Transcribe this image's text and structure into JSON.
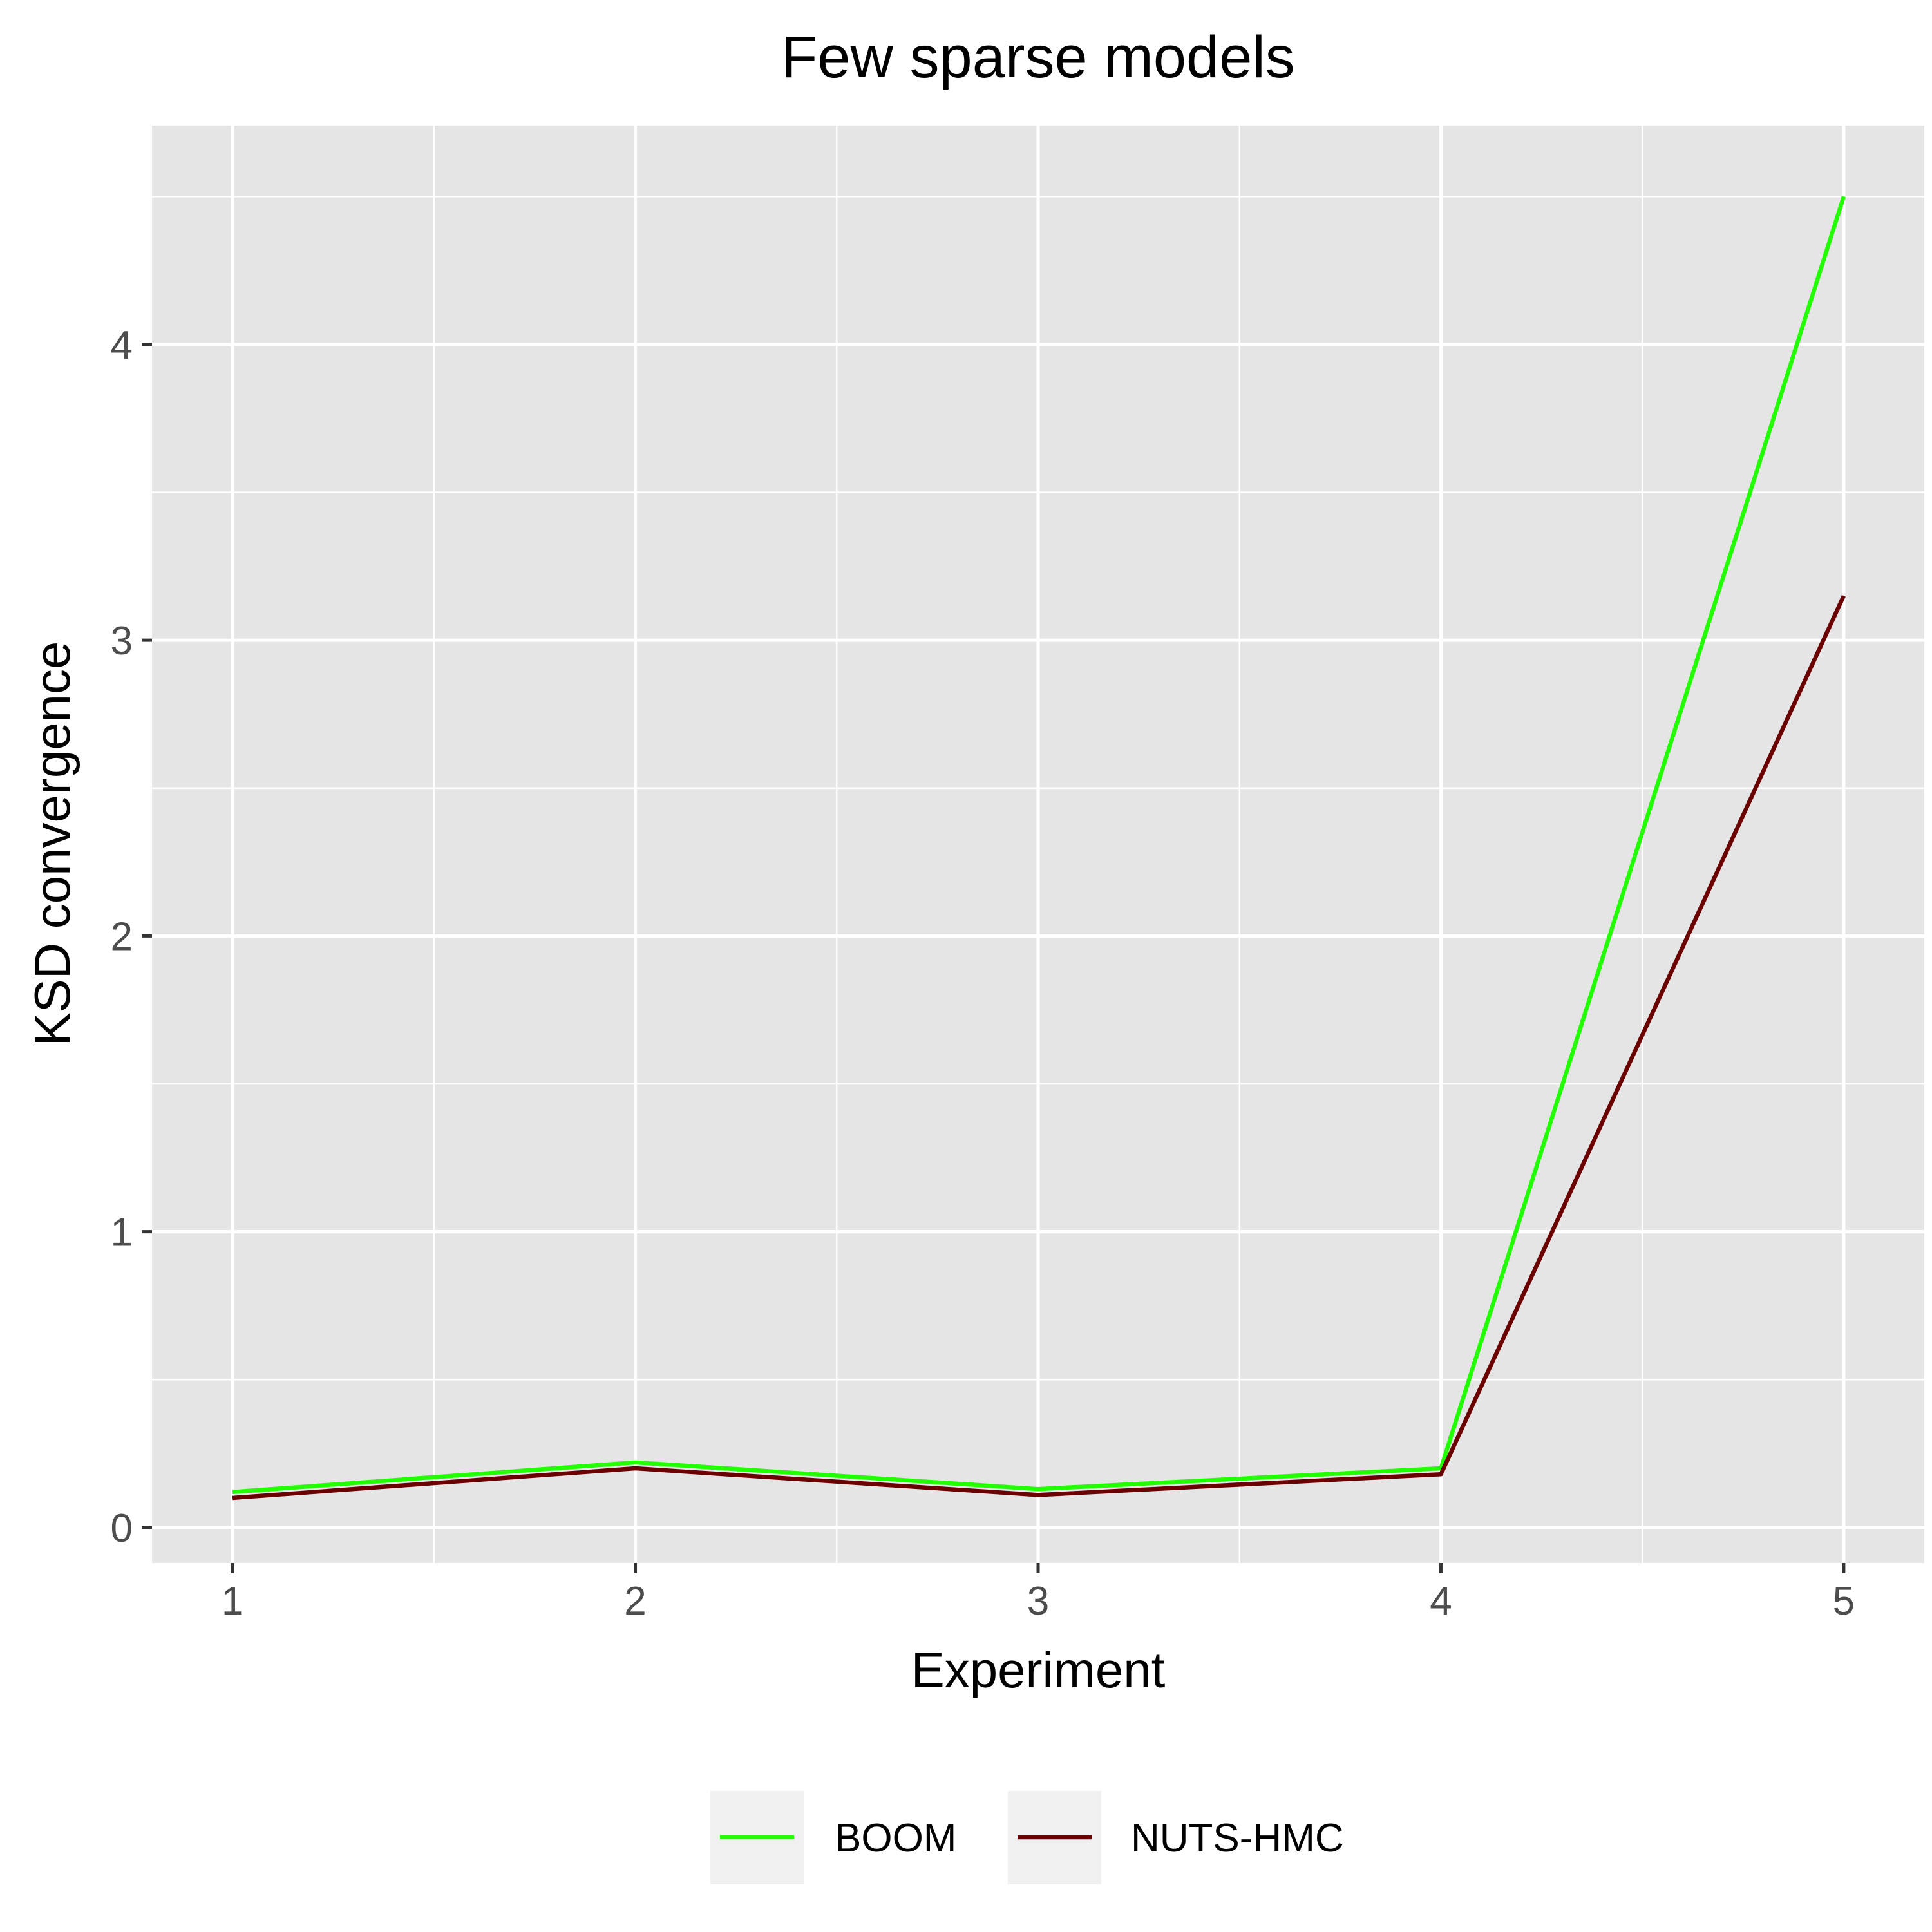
{
  "chart_data": {
    "type": "line",
    "title": "Few sparse models",
    "xlabel": "Experiment",
    "ylabel": "KSD convergence",
    "x": [
      1,
      2,
      3,
      4,
      5
    ],
    "xlim": [
      0.8,
      5.2
    ],
    "ylim": [
      -0.12,
      4.74
    ],
    "x_ticks": [
      "1",
      "2",
      "3",
      "4",
      "5"
    ],
    "y_ticks": [
      "0",
      "1",
      "2",
      "3",
      "4"
    ],
    "grid": true,
    "legend_position": "bottom",
    "series": [
      {
        "name": "BOOM",
        "color": "#22ff00",
        "values": [
          0.12,
          0.22,
          0.13,
          0.2,
          4.5
        ]
      },
      {
        "name": "NUTS-HMC",
        "color": "#6b0000",
        "values": [
          0.1,
          0.2,
          0.11,
          0.18,
          3.15
        ]
      }
    ],
    "colors": {
      "panel": "#e5e5e5",
      "grid": "#ffffff",
      "legend_key": "#f0f0f0"
    }
  }
}
